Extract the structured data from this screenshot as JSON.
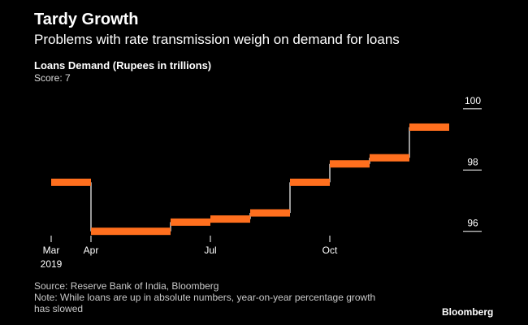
{
  "header": {
    "title": "Tardy Growth",
    "subtitle": "Problems with rate transmission weigh on demand for loans"
  },
  "chart_data": {
    "type": "line",
    "title": "Loans Demand (Rupees in trillions)",
    "subtitle": "Score: 7",
    "step": true,
    "x": [
      "2019-03",
      "2019-04",
      "2019-05",
      "2019-06",
      "2019-07",
      "2019-08",
      "2019-09",
      "2019-10",
      "2019-11",
      "2019-12",
      "2020-01"
    ],
    "series": [
      {
        "values": [
          97.6,
          96.0,
          96.0,
          96.3,
          96.4,
          96.6,
          97.6,
          98.2,
          98.4,
          99.4,
          null
        ]
      }
    ],
    "x_tick_labels": [
      {
        "x": "2019-03",
        "label": "Mar",
        "sublabel": "2019"
      },
      {
        "x": "2019-04",
        "label": "Apr",
        "sublabel": ""
      },
      {
        "x": "2019-07",
        "label": "Jul",
        "sublabel": ""
      },
      {
        "x": "2019-10",
        "label": "Oct",
        "sublabel": ""
      }
    ],
    "y_ticks": [
      96,
      98,
      100
    ],
    "ylim": [
      95.7,
      100.5
    ],
    "y_axis_position": "right",
    "grid": false,
    "colors": {
      "series": "#ff6f1e",
      "connector": "#ffffff",
      "axis": "#ffffff",
      "background": "#000000"
    }
  },
  "footer": {
    "source": "Source: Reserve Bank of India, Bloomberg",
    "note_line1": "Note: While loans are up in absolute numbers, year-on-year percentage growth",
    "note_line2": "has slowed",
    "brand": "Bloomberg"
  }
}
